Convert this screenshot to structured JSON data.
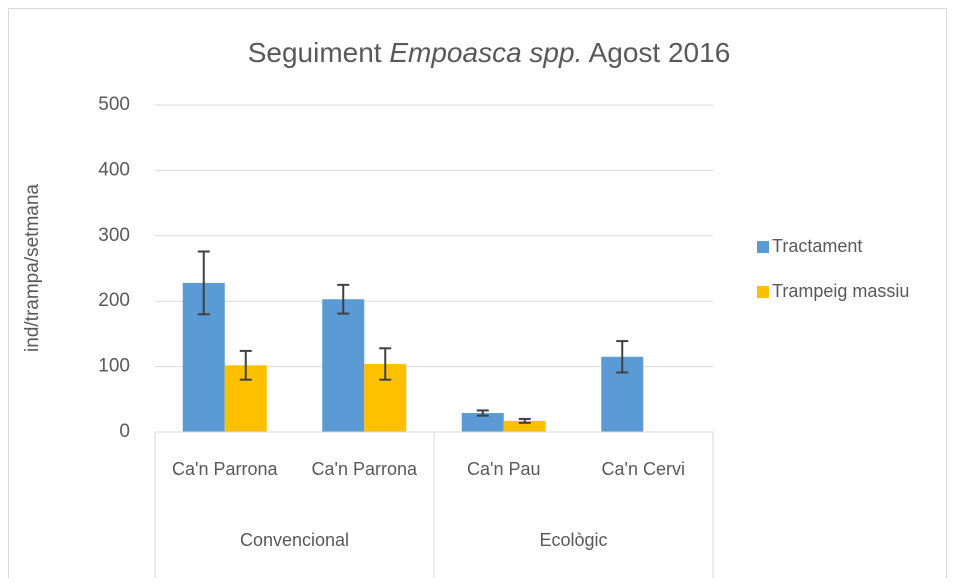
{
  "chart_data": {
    "type": "bar",
    "title_parts": [
      {
        "text": "Seguiment "
      },
      {
        "text": "Empoasca spp.",
        "italic": true
      },
      {
        "text": " Agost 2016"
      }
    ],
    "ylabel": "ind/trampa/setmana",
    "categories": [
      "Ca'n Parrona",
      "Ca'n Parrona",
      "Ca'n Pau",
      "Ca'n Cervi"
    ],
    "groups": [
      {
        "label": "Convencional",
        "size": 2
      },
      {
        "label": "Ecològic",
        "size": 2
      }
    ],
    "series": [
      {
        "name": "Tractament",
        "color": "#5b9bd5",
        "values": [
          228,
          203,
          29,
          115
        ],
        "errors": [
          48,
          22,
          4,
          24
        ]
      },
      {
        "name": "Trampeig massiu",
        "color": "#ffc000",
        "values": [
          102,
          104,
          17,
          null
        ],
        "errors": [
          22,
          24,
          3,
          null
        ]
      }
    ],
    "ylim": [
      0,
      500
    ],
    "yticks": [
      0,
      100,
      200,
      300,
      400,
      500
    ],
    "grid": true,
    "legend": "right"
  }
}
